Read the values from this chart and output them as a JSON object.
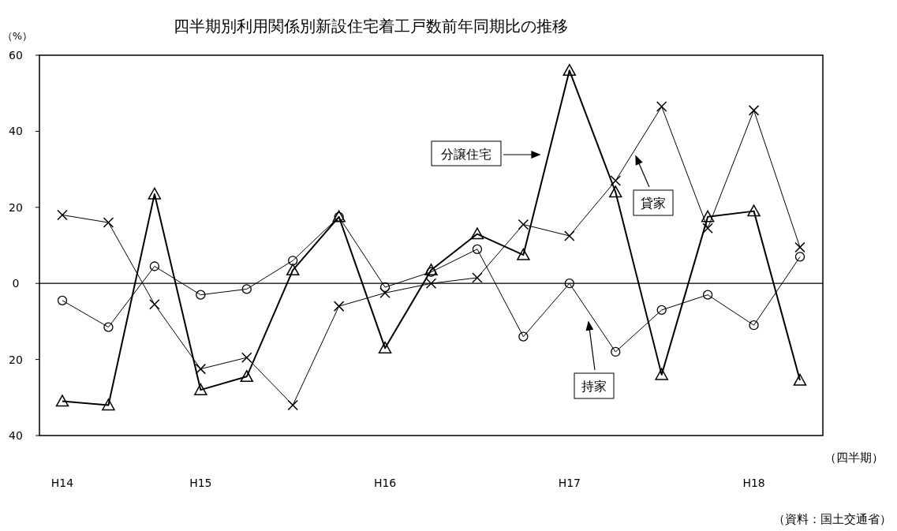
{
  "chart_data": {
    "type": "line",
    "title": "四半期別利用関係別新設住宅着工戸数前年同期比の推移",
    "ylabel": "（%）",
    "xlabel": "（四半期）",
    "annotations": [
      "（資料：国土交通省）"
    ],
    "categories": [
      "H14",
      null,
      null,
      "H15",
      null,
      null,
      null,
      "H16",
      null,
      null,
      null,
      "H17",
      null,
      null,
      null,
      "H18",
      null
    ],
    "ylim": [
      -40,
      60
    ],
    "yticks": [
      60,
      40,
      20,
      0,
      {
        "value": -20,
        "label": "20"
      },
      {
        "value": -40,
        "label": "40"
      }
    ],
    "ref_lines": [
      {
        "axis": "y",
        "value": 0,
        "color": "#000000"
      }
    ],
    "grid": false,
    "series": [
      {
        "name": "分譲住宅",
        "color": "#000000",
        "marker": "triangle",
        "values": [
          -31,
          -32,
          23.5,
          -28,
          -24.5,
          3.5,
          17.5,
          -17,
          3.5,
          13,
          7.5,
          56,
          24,
          -24,
          17.5,
          19,
          -25.5
        ]
      },
      {
        "name": "貸家",
        "color": "#000000",
        "marker": "cross",
        "values": [
          18,
          16,
          -5.5,
          -22.5,
          -19.5,
          -32,
          -6,
          -2.5,
          0,
          1.5,
          15.5,
          12.5,
          27,
          46.5,
          14.5,
          45.5,
          9.5
        ]
      },
      {
        "name": "持家",
        "color": "#000000",
        "marker": "circle",
        "values": [
          -4.5,
          -11.5,
          4.5,
          -3,
          -1.5,
          6,
          17.5,
          -1,
          3,
          9,
          -14,
          0,
          -18,
          -7,
          -3,
          -11,
          7
        ]
      }
    ]
  }
}
